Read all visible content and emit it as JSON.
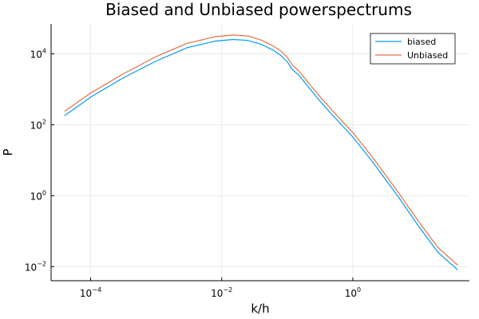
{
  "chart_data": {
    "type": "line",
    "title": "Biased and Unbiased powerspectrums",
    "xlabel": "k/h",
    "ylabel": "P",
    "xscale": "log",
    "yscale": "log",
    "xlim": [
      2.5e-05,
      60
    ],
    "ylim": [
      0.004,
      70000
    ],
    "grid": true,
    "legend_position": "top-right",
    "x_ticks": [
      {
        "base": "10",
        "exp": "−4",
        "value": 0.0001
      },
      {
        "base": "10",
        "exp": "−2",
        "value": 0.01
      },
      {
        "base": "10",
        "exp": "0",
        "value": 1
      }
    ],
    "y_ticks": [
      {
        "base": "10",
        "exp": "−2",
        "value": 0.01
      },
      {
        "base": "10",
        "exp": "0",
        "value": 1
      },
      {
        "base": "10",
        "exp": "2",
        "value": 100
      },
      {
        "base": "10",
        "exp": "4",
        "value": 10000
      }
    ],
    "series": [
      {
        "name": "biased",
        "color": "#009AFA",
        "points": [
          [
            4e-05,
            180
          ],
          [
            0.0001,
            600
          ],
          [
            0.0003,
            2000
          ],
          [
            0.001,
            6300
          ],
          [
            0.003,
            15000
          ],
          [
            0.008,
            23000
          ],
          [
            0.015,
            25500
          ],
          [
            0.025,
            24000
          ],
          [
            0.04,
            18500
          ],
          [
            0.06,
            13000
          ],
          [
            0.08,
            9000
          ],
          [
            0.1,
            6000
          ],
          [
            0.12,
            3600
          ],
          [
            0.15,
            2500
          ],
          [
            0.2,
            1300
          ],
          [
            0.3,
            520
          ],
          [
            0.5,
            180
          ],
          [
            1,
            45
          ],
          [
            2,
            9
          ],
          [
            5,
            0.9
          ],
          [
            10,
            0.14
          ],
          [
            20,
            0.025
          ],
          [
            40,
            0.008
          ]
        ]
      },
      {
        "name": "Unbiased",
        "color": "#E26F46",
        "points": [
          [
            4e-05,
            240
          ],
          [
            0.0001,
            780
          ],
          [
            0.0003,
            2600
          ],
          [
            0.001,
            8400
          ],
          [
            0.003,
            20000
          ],
          [
            0.008,
            30500
          ],
          [
            0.015,
            34000
          ],
          [
            0.025,
            32000
          ],
          [
            0.04,
            24500
          ],
          [
            0.06,
            17000
          ],
          [
            0.08,
            12000
          ],
          [
            0.1,
            8000
          ],
          [
            0.12,
            4800
          ],
          [
            0.15,
            3300
          ],
          [
            0.2,
            1700
          ],
          [
            0.3,
            690
          ],
          [
            0.5,
            240
          ],
          [
            1,
            60
          ],
          [
            2,
            12
          ],
          [
            5,
            1.2
          ],
          [
            10,
            0.19
          ],
          [
            20,
            0.034
          ],
          [
            40,
            0.011
          ]
        ]
      }
    ]
  }
}
